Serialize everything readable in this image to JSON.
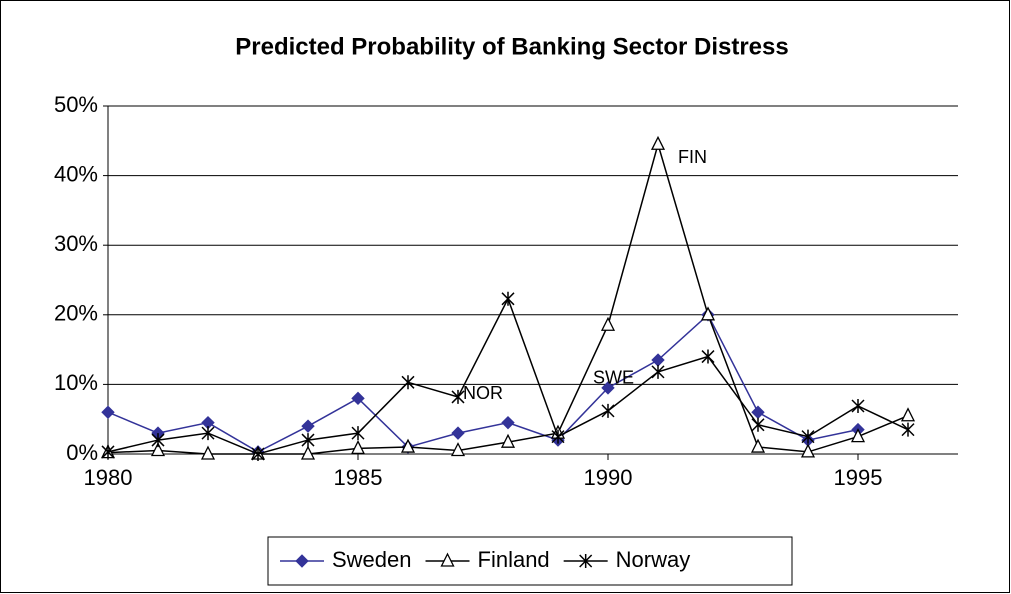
{
  "chart_data": {
    "type": "line",
    "title": "Predicted Probability of Banking Sector Distress",
    "x": [
      1980,
      1981,
      1982,
      1983,
      1984,
      1985,
      1986,
      1987,
      1988,
      1989,
      1990,
      1991,
      1992,
      1993,
      1994,
      1995,
      1996
    ],
    "series": [
      {
        "name": "Sweden",
        "color": "#333399",
        "marker": "diamond",
        "values": [
          6,
          3,
          4.5,
          0.3,
          4,
          8,
          1,
          3,
          4.5,
          2,
          9.5,
          13.5,
          20,
          6,
          2,
          3.5,
          null
        ]
      },
      {
        "name": "Finland",
        "color": "#000000",
        "marker": "triangle",
        "values": [
          0.2,
          0.5,
          0,
          0,
          0,
          0.8,
          1,
          0.5,
          1.7,
          3,
          18.5,
          44.5,
          20,
          1,
          0.3,
          2.5,
          5.5
        ]
      },
      {
        "name": "Norway",
        "color": "#000000",
        "marker": "asterisk",
        "values": [
          0.3,
          2,
          3,
          0,
          2,
          3,
          10.3,
          8.2,
          22.3,
          2.5,
          6.2,
          11.8,
          14,
          4.2,
          2.5,
          6.9,
          3.5
        ]
      }
    ],
    "xlim": [
      1980,
      1997
    ],
    "xticks": [
      1980,
      1985,
      1990,
      1995
    ],
    "ylim": [
      0,
      50
    ],
    "yticks": [
      {
        "value": 0,
        "label": "0%"
      },
      {
        "value": 10,
        "label": "10%"
      },
      {
        "value": 20,
        "label": "20%"
      },
      {
        "value": 30,
        "label": "30%"
      },
      {
        "value": 40,
        "label": "40%"
      },
      {
        "value": 50,
        "label": "50%"
      }
    ],
    "grid": true,
    "legend": "bottom",
    "annotations": [
      {
        "text": "FIN",
        "x": 1991.4,
        "y": 42.5
      },
      {
        "text": "NOR",
        "x": 1987.1,
        "y": 8.6
      },
      {
        "text": "SWE",
        "x": 1989.7,
        "y": 10.8
      }
    ]
  }
}
